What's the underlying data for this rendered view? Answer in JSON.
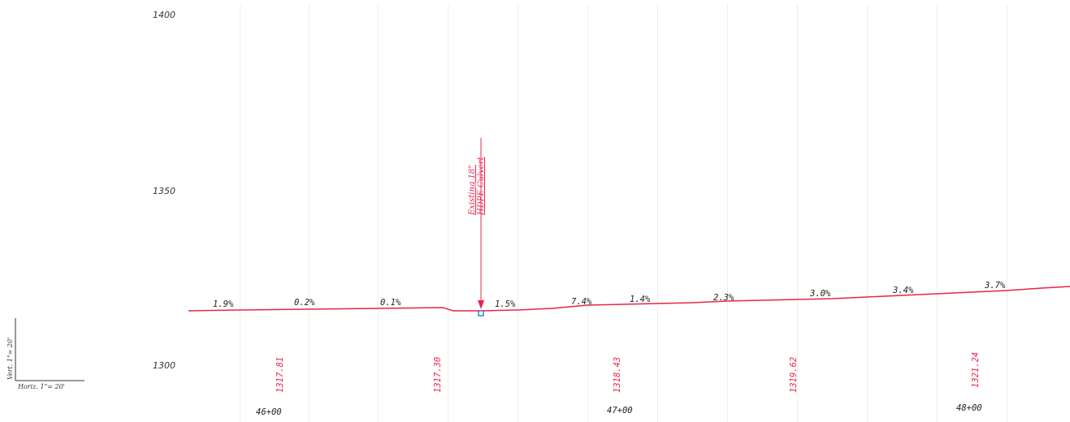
{
  "profile": {
    "elevation_labels": [
      "1400",
      "1350",
      "1300"
    ],
    "grades": [
      "1.9%",
      "0.2%",
      "0.1%",
      "1.5%",
      "7.4%",
      "1.4%",
      "2.3%",
      "3.0%",
      "3.4%",
      "3.7%"
    ],
    "point_elevations": [
      "1317.81",
      "1317.30",
      "1318.43",
      "1319.62",
      "1321.24"
    ],
    "stations": [
      "46+00",
      "47+00",
      "48+00"
    ],
    "culvert_label_line1": "Existing 18\"",
    "culvert_label_line2": "HDPE Culvert",
    "profile_color": "#e8244a",
    "marker_color": "#1e5fc8"
  },
  "scale": {
    "vertical": "Vert. 1\"= 20'",
    "horizontal": "Horiz. 1\"= 20'"
  }
}
